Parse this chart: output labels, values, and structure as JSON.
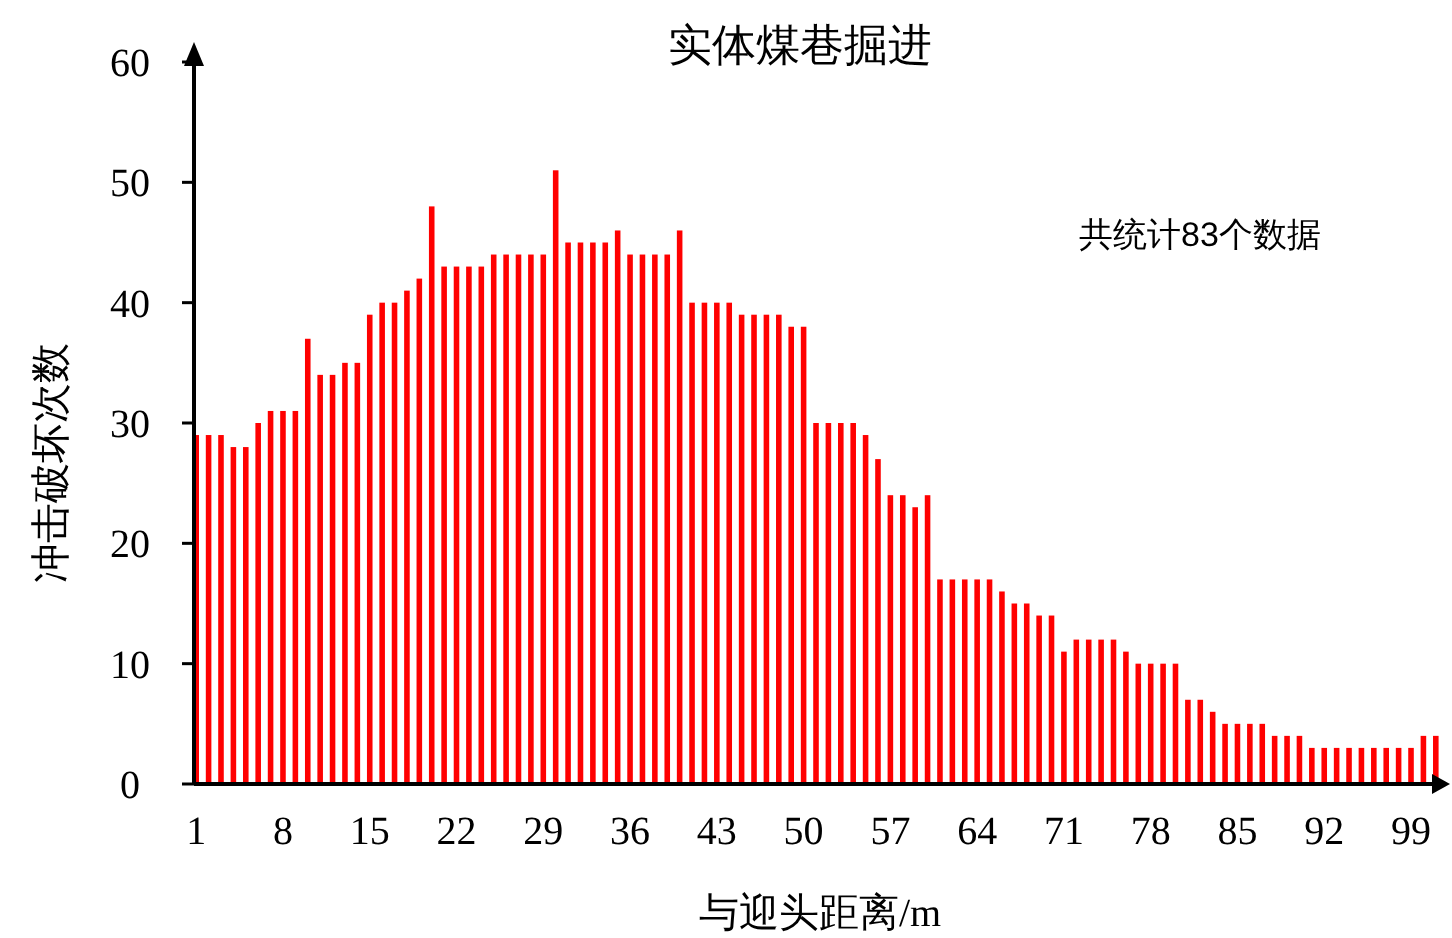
{
  "chart_data": {
    "type": "bar",
    "title": "实体煤巷掘进",
    "xlabel": "与迎头距离/m",
    "ylabel": "冲击破坏次数",
    "annotations": [
      "共统计83个数据"
    ],
    "categories": [
      "1",
      null,
      null,
      null,
      null,
      null,
      null,
      "8",
      null,
      null,
      null,
      null,
      null,
      null,
      "15",
      null,
      null,
      null,
      null,
      null,
      null,
      "22",
      null,
      null,
      null,
      null,
      null,
      null,
      "29",
      null,
      null,
      null,
      null,
      null,
      null,
      "36",
      null,
      null,
      null,
      null,
      null,
      null,
      "43",
      null,
      null,
      null,
      null,
      null,
      null,
      "50",
      null,
      null,
      null,
      null,
      null,
      null,
      "57",
      null,
      null,
      null,
      null,
      null,
      null,
      "64",
      null,
      null,
      null,
      null,
      null,
      null,
      "71",
      null,
      null,
      null,
      null,
      null,
      null,
      "78",
      null,
      null,
      null,
      null,
      null,
      null,
      "85",
      null,
      null,
      null,
      null,
      null,
      null,
      "92",
      null,
      null,
      null,
      null,
      null,
      null,
      "99",
      null,
      null
    ],
    "values": [
      29,
      29,
      29,
      28,
      28,
      30,
      31,
      31,
      31,
      37,
      34,
      34,
      35,
      35,
      39,
      40,
      40,
      41,
      42,
      48,
      43,
      43,
      43,
      43,
      44,
      44,
      44,
      44,
      44,
      51,
      45,
      45,
      45,
      45,
      46,
      44,
      44,
      44,
      44,
      46,
      40,
      40,
      40,
      40,
      39,
      39,
      39,
      39,
      38,
      38,
      30,
      30,
      30,
      30,
      29,
      27,
      24,
      24,
      23,
      24,
      17,
      17,
      17,
      17,
      17,
      16,
      15,
      15,
      14,
      14,
      11,
      12,
      12,
      12,
      12,
      11,
      10,
      10,
      10,
      10,
      7,
      7,
      6,
      5,
      5,
      5,
      5,
      4,
      4,
      4,
      3,
      3,
      3,
      3,
      3,
      3,
      3,
      3,
      3,
      4,
      4
    ],
    "color": "#ff0000",
    "ylim": [
      0,
      60
    ],
    "yticks": [
      0,
      10,
      20,
      30,
      40,
      50,
      60
    ],
    "grid": false
  }
}
